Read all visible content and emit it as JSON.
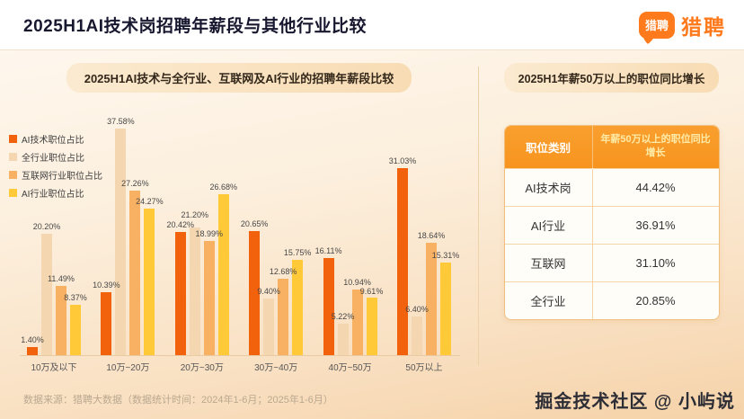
{
  "header": {
    "title": "2025H1AI技术岗招聘年薪段与其他行业比较",
    "logo_bubble_text": "猎聘",
    "logo_text": "猎聘"
  },
  "left_panel": {
    "title": "2025H1AI技术与全行业、互联网及AI行业的招聘年薪段比较"
  },
  "right_panel": {
    "title": "2025H1年薪50万以上的职位同比增长",
    "table": {
      "headers": [
        "职位类别",
        "年薪50万以上的职位同比增长"
      ],
      "rows": [
        {
          "label": "AI技术岗",
          "value": "44.42%"
        },
        {
          "label": "AI行业",
          "value": "36.91%"
        },
        {
          "label": "互联网",
          "value": "31.10%"
        },
        {
          "label": "全行业",
          "value": "20.85%"
        }
      ]
    }
  },
  "chart_data": {
    "type": "bar",
    "title": "2025H1AI技术与全行业、互联网及AI行业的招聘年薪段比较",
    "categories": [
      "10万及以下",
      "10万~20万",
      "20万~30万",
      "30万~40万",
      "40万~50万",
      "50万以上"
    ],
    "series": [
      {
        "name": "AI技术职位占比",
        "color": "#F2610C",
        "values": [
          1.4,
          10.39,
          20.42,
          20.65,
          16.11,
          31.03
        ]
      },
      {
        "name": "全行业职位占比",
        "color": "#F4D7B0",
        "values": [
          20.2,
          37.58,
          21.2,
          9.4,
          5.22,
          6.4
        ]
      },
      {
        "name": "互联网行业职位占比",
        "color": "#F8B062",
        "values": [
          11.49,
          27.26,
          18.99,
          12.68,
          10.94,
          18.64
        ]
      },
      {
        "name": "AI行业职位占比",
        "color": "#FFC937",
        "values": [
          8.37,
          24.27,
          26.68,
          15.75,
          9.61,
          15.31
        ]
      }
    ],
    "value_suffix": "%",
    "ylim": [
      0,
      40
    ],
    "grid": false,
    "legend_position": "top-left"
  },
  "footer": {
    "source": "数据来源：猎聘大数据（数据统计时间：2024年1-6月；2025年1-6月）",
    "watermark": "掘金技术社区 @ 小屿说"
  }
}
